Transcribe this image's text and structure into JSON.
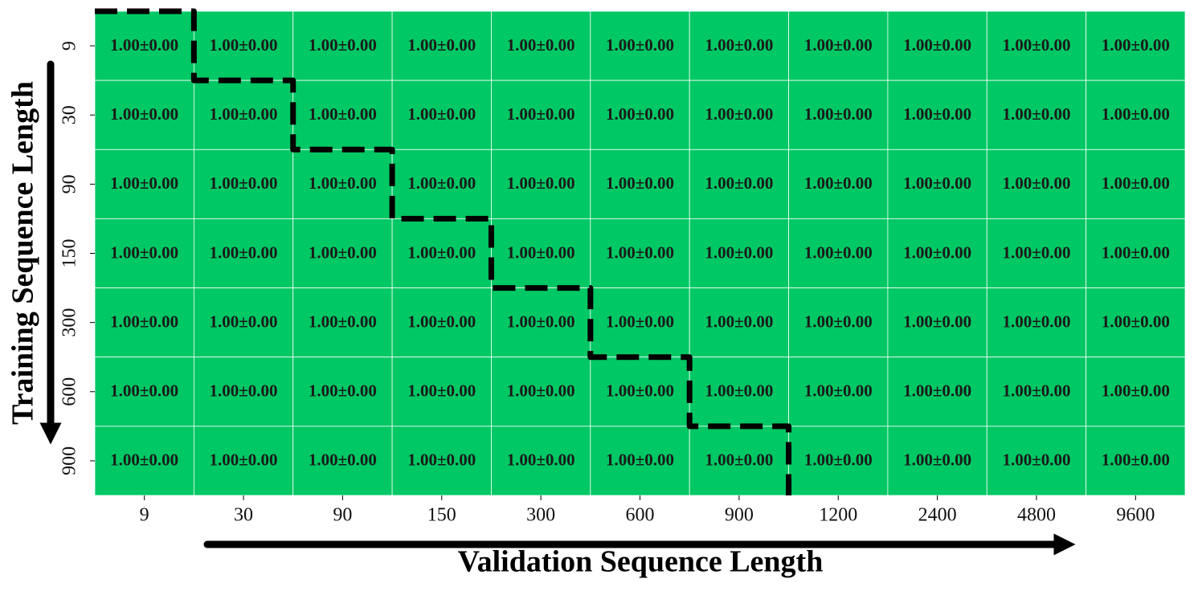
{
  "chart_data": {
    "type": "heatmap",
    "x_label": "Validation Sequence Length",
    "y_label": "Training Sequence Length",
    "x_categories": [
      "9",
      "30",
      "90",
      "150",
      "300",
      "600",
      "900",
      "1200",
      "2400",
      "4800",
      "9600"
    ],
    "y_categories": [
      "9",
      "30",
      "90",
      "150",
      "300",
      "600",
      "900"
    ],
    "color": "#00c864",
    "values": [
      [
        1,
        1,
        1,
        1,
        1,
        1,
        1,
        1,
        1,
        1,
        1
      ],
      [
        1,
        1,
        1,
        1,
        1,
        1,
        1,
        1,
        1,
        1,
        1
      ],
      [
        1,
        1,
        1,
        1,
        1,
        1,
        1,
        1,
        1,
        1,
        1
      ],
      [
        1,
        1,
        1,
        1,
        1,
        1,
        1,
        1,
        1,
        1,
        1
      ],
      [
        1,
        1,
        1,
        1,
        1,
        1,
        1,
        1,
        1,
        1,
        1
      ],
      [
        1,
        1,
        1,
        1,
        1,
        1,
        1,
        1,
        1,
        1,
        1
      ],
      [
        1,
        1,
        1,
        1,
        1,
        1,
        1,
        1,
        1,
        1,
        1
      ]
    ],
    "errors": [
      [
        0,
        0,
        0,
        0,
        0,
        0,
        0,
        0,
        0,
        0,
        0
      ],
      [
        0,
        0,
        0,
        0,
        0,
        0,
        0,
        0,
        0,
        0,
        0
      ],
      [
        0,
        0,
        0,
        0,
        0,
        0,
        0,
        0,
        0,
        0,
        0
      ],
      [
        0,
        0,
        0,
        0,
        0,
        0,
        0,
        0,
        0,
        0,
        0
      ],
      [
        0,
        0,
        0,
        0,
        0,
        0,
        0,
        0,
        0,
        0,
        0
      ],
      [
        0,
        0,
        0,
        0,
        0,
        0,
        0,
        0,
        0,
        0,
        0
      ],
      [
        0,
        0,
        0,
        0,
        0,
        0,
        0,
        0,
        0,
        0,
        0
      ]
    ],
    "value_labels": [
      [
        "1.00±0.00",
        "1.00±0.00",
        "1.00±0.00",
        "1.00±0.00",
        "1.00±0.00",
        "1.00±0.00",
        "1.00±0.00",
        "1.00±0.00",
        "1.00±0.00",
        "1.00±0.00",
        "1.00±0.00"
      ],
      [
        "1.00±0.00",
        "1.00±0.00",
        "1.00±0.00",
        "1.00±0.00",
        "1.00±0.00",
        "1.00±0.00",
        "1.00±0.00",
        "1.00±0.00",
        "1.00±0.00",
        "1.00±0.00",
        "1.00±0.00"
      ],
      [
        "1.00±0.00",
        "1.00±0.00",
        "1.00±0.00",
        "1.00±0.00",
        "1.00±0.00",
        "1.00±0.00",
        "1.00±0.00",
        "1.00±0.00",
        "1.00±0.00",
        "1.00±0.00",
        "1.00±0.00"
      ],
      [
        "1.00±0.00",
        "1.00±0.00",
        "1.00±0.00",
        "1.00±0.00",
        "1.00±0.00",
        "1.00±0.00",
        "1.00±0.00",
        "1.00±0.00",
        "1.00±0.00",
        "1.00±0.00",
        "1.00±0.00"
      ],
      [
        "1.00±0.00",
        "1.00±0.00",
        "1.00±0.00",
        "1.00±0.00",
        "1.00±0.00",
        "1.00±0.00",
        "1.00±0.00",
        "1.00±0.00",
        "1.00±0.00",
        "1.00±0.00",
        "1.00±0.00"
      ],
      [
        "1.00±0.00",
        "1.00±0.00",
        "1.00±0.00",
        "1.00±0.00",
        "1.00±0.00",
        "1.00±0.00",
        "1.00±0.00",
        "1.00±0.00",
        "1.00±0.00",
        "1.00±0.00",
        "1.00±0.00"
      ],
      [
        "1.00±0.00",
        "1.00±0.00",
        "1.00±0.00",
        "1.00±0.00",
        "1.00±0.00",
        "1.00±0.00",
        "1.00±0.00",
        "1.00±0.00",
        "1.00±0.00",
        "1.00±0.00",
        "1.00±0.00"
      ]
    ]
  }
}
